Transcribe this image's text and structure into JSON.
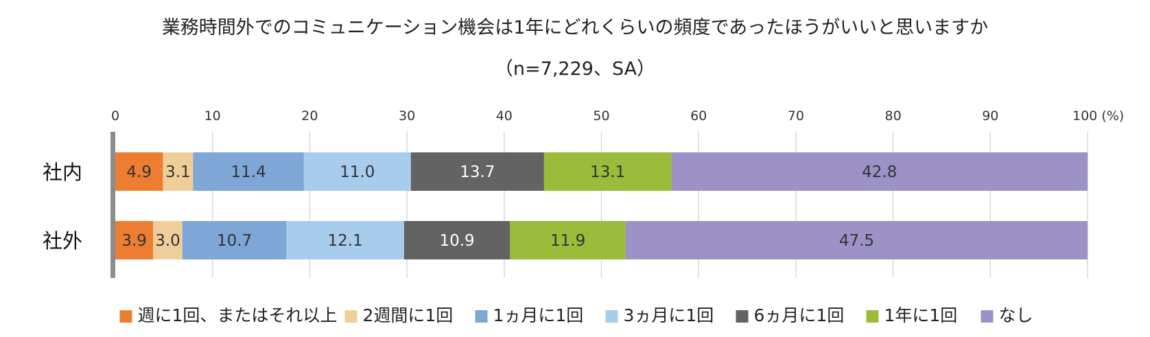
{
  "chart_data": {
    "type": "bar",
    "orientation": "horizontal",
    "stacked": true,
    "title": "業務時間外でのコミュニケーション機会は1年にどれくらいの頻度であったほうがいいと思いますか",
    "subtitle": "（n=7,229、SA）",
    "xlim": [
      0,
      100
    ],
    "x_ticks": [
      "0",
      "10",
      "20",
      "30",
      "40",
      "50",
      "60",
      "70",
      "80",
      "90",
      "100 (%)"
    ],
    "grid": true,
    "legend_position": "bottom",
    "categories": [
      "社内",
      "社外"
    ],
    "series": [
      {
        "name": "週に1回、またはそれ以上",
        "color": "#ED7D31",
        "label_color": "#333333",
        "values": [
          4.9,
          3.9
        ]
      },
      {
        "name": "2週間に1回",
        "color": "#F0CE9A",
        "label_color": "#333333",
        "values": [
          3.1,
          3.0
        ]
      },
      {
        "name": "1ヵ月に1回",
        "color": "#7EA6D6",
        "label_color": "#333333",
        "values": [
          11.4,
          10.7
        ]
      },
      {
        "name": "3ヵ月に1回",
        "color": "#A8CCEC",
        "label_color": "#333333",
        "values": [
          11.0,
          12.1
        ]
      },
      {
        "name": "6ヵ月に1回",
        "color": "#636363",
        "label_color": "#FFFFFF",
        "values": [
          13.7,
          10.9
        ]
      },
      {
        "name": "1年に1回",
        "color": "#9BBB3B",
        "label_color": "#333333",
        "values": [
          13.1,
          11.9
        ]
      },
      {
        "name": "なし",
        "color": "#9D92C7",
        "label_color": "#333333",
        "values": [
          42.8,
          47.5
        ]
      }
    ]
  }
}
